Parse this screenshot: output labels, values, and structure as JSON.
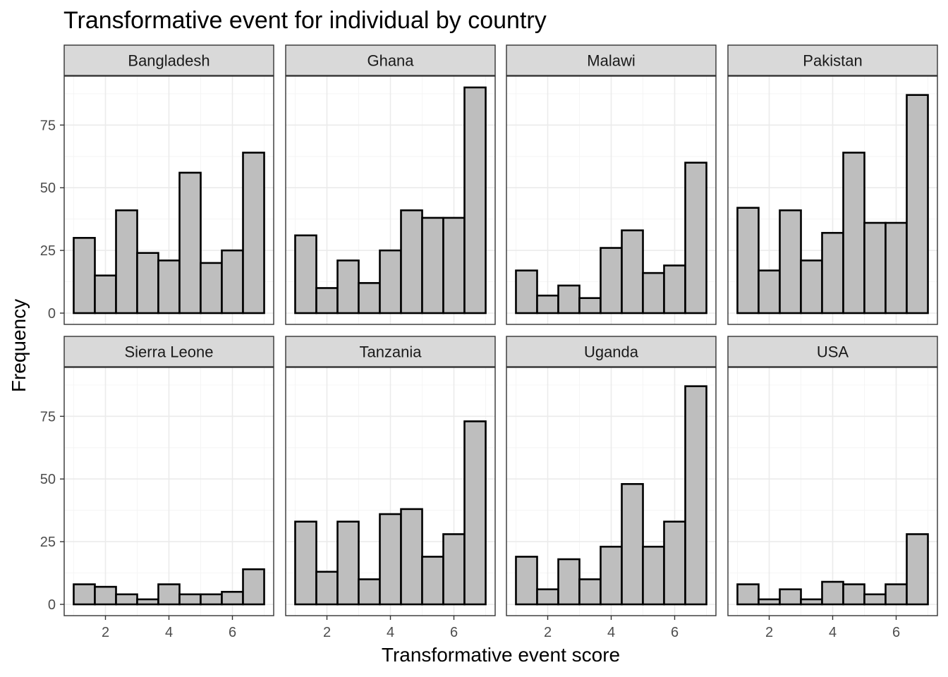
{
  "chart_data": {
    "type": "bar",
    "title": "Transformative event for individual by country",
    "xlabel": "Transformative event score",
    "ylabel": "Frequency",
    "xlim": [
      0.7,
      7.3
    ],
    "ylim": [
      -4.5,
      94.5
    ],
    "x_ticks": [
      2,
      4,
      6
    ],
    "y_ticks": [
      0,
      25,
      50,
      75
    ],
    "bin_width": 0.667,
    "bin_centers": [
      1.333,
      2.0,
      2.667,
      3.333,
      4.0,
      4.667,
      5.333,
      6.0,
      6.667
    ],
    "grid": true,
    "layout": "facet 4 columns x 2 rows",
    "facets": [
      {
        "name": "Bangladesh",
        "values": [
          30,
          15,
          41,
          24,
          21,
          56,
          20,
          25,
          64
        ]
      },
      {
        "name": "Ghana",
        "values": [
          31,
          10,
          21,
          12,
          25,
          41,
          38,
          38,
          90
        ]
      },
      {
        "name": "Malawi",
        "values": [
          17,
          7,
          11,
          6,
          26,
          33,
          16,
          19,
          60
        ]
      },
      {
        "name": "Pakistan",
        "values": [
          42,
          17,
          41,
          21,
          32,
          64,
          36,
          36,
          87
        ]
      },
      {
        "name": "Sierra Leone",
        "values": [
          8,
          7,
          4,
          2,
          8,
          4,
          4,
          5,
          14
        ]
      },
      {
        "name": "Tanzania",
        "values": [
          33,
          13,
          33,
          10,
          36,
          38,
          19,
          28,
          73
        ]
      },
      {
        "name": "Uganda",
        "values": [
          19,
          6,
          18,
          10,
          23,
          48,
          23,
          33,
          87
        ]
      },
      {
        "name": "USA",
        "values": [
          8,
          2,
          6,
          2,
          9,
          8,
          4,
          8,
          28
        ]
      }
    ]
  }
}
